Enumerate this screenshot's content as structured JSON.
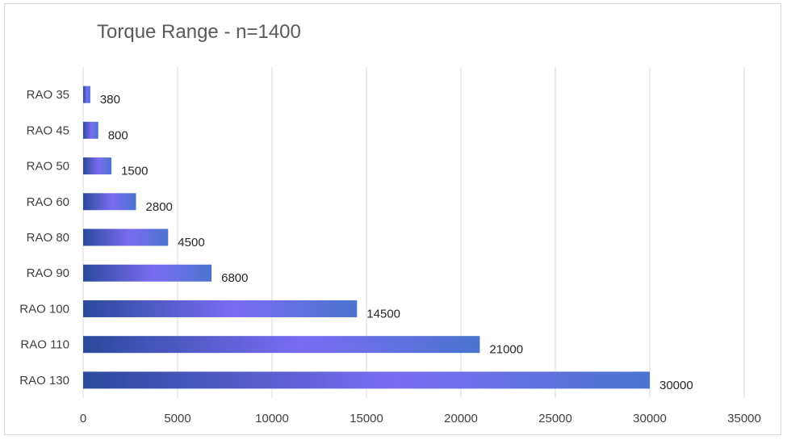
{
  "chart_data": {
    "type": "bar",
    "orientation": "horizontal",
    "title": "Torque Range - n=1400",
    "categories": [
      "RAO 35",
      "RAO 45",
      "RAO 50",
      "RAO 60",
      "RAO 80",
      "RAO 90",
      "RAO 100",
      "RAO 110",
      "RAO 130"
    ],
    "values": [
      380,
      800,
      1500,
      2800,
      4500,
      6800,
      14500,
      21000,
      30000
    ],
    "xlim": [
      0,
      35000
    ],
    "x_ticks": [
      0,
      5000,
      10000,
      15000,
      20000,
      25000,
      30000,
      35000
    ],
    "grid": "vertical",
    "legend": "none",
    "colors": {
      "bar_edge": "#2f4f9f",
      "bar_mid": "#7b6cf2",
      "bar_end": "#4a74cf",
      "gridline": "#d9d9d9"
    }
  }
}
